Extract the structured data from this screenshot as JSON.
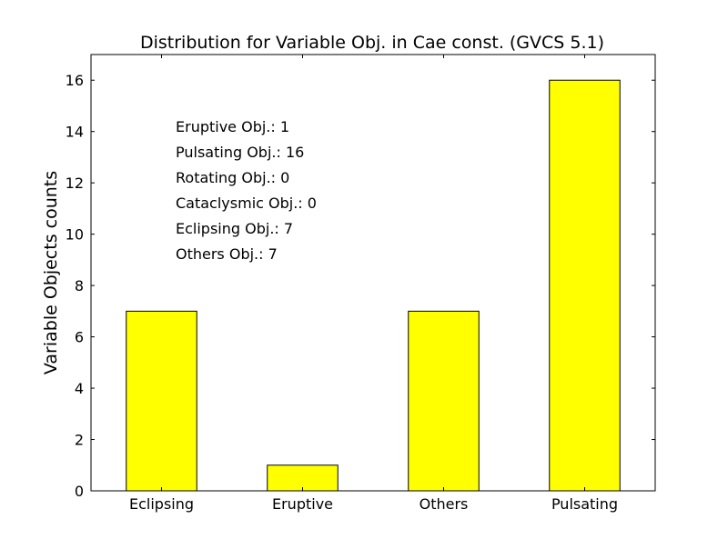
{
  "chart_data": {
    "type": "bar",
    "title": "Distribution for Variable Obj. in Cae const. (GVCS 5.1)",
    "xlabel": "",
    "ylabel": "Variable Objects counts",
    "categories": [
      "Eclipsing",
      "Eruptive",
      "Others",
      "Pulsating"
    ],
    "values": [
      7,
      1,
      7,
      16
    ],
    "ylim": [
      0,
      17
    ],
    "yticks": [
      0,
      2,
      4,
      6,
      8,
      10,
      12,
      14,
      16
    ],
    "grid": false,
    "bar_color": "#ffff00",
    "bar_edge_color": "#000000",
    "annotations": [
      "Eruptive Obj.: 1",
      "Pulsating Obj.: 16",
      "Rotating Obj.: 0",
      "Cataclysmic Obj.: 0",
      "Eclipsing Obj.: 7",
      "Others Obj.: 7"
    ]
  }
}
